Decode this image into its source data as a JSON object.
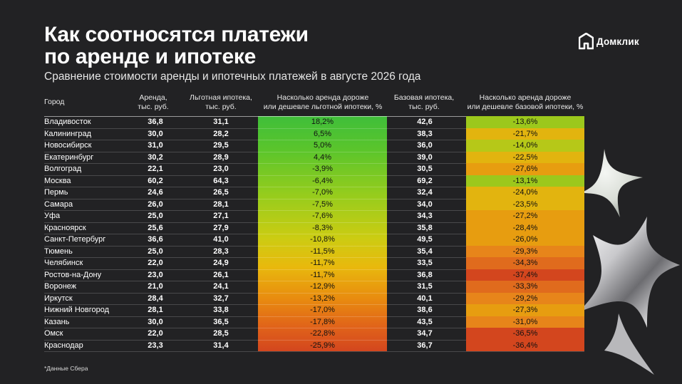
{
  "title_line1": "Как соотносятся платежи",
  "title_line2": "по аренде и ипотеке",
  "subtitle": "Сравнение стоимости аренды и ипотечных платежей в августе 2026 года",
  "logo_text": "Домклик",
  "footnote": "*Данные Сбера",
  "colors": {
    "background": "#222224",
    "diff_scale": [
      "#3fbe3a",
      "#94cc1d",
      "#cccc12",
      "#e8b90d",
      "#e88a0f",
      "#d3461e"
    ]
  },
  "chart_data": {
    "type": "table",
    "columns": [
      "Город",
      "Аренда,\nтыс. руб.",
      "Льготная ипотека,\nтыс. руб.",
      "Насколько аренда дороже\nили дешевле льготной ипотеки, %",
      "Базовая ипотека,\nтыс. руб.",
      "Насколько аренда дороже\nили дешевле базовой ипотеки, %"
    ],
    "rows": [
      {
        "city": "Владивосток",
        "rent": "36,8",
        "pref": "31,1",
        "pref_diff": "18,2%",
        "base": "42,6",
        "base_diff": "-13,6%"
      },
      {
        "city": "Калининград",
        "rent": "30,0",
        "pref": "28,2",
        "pref_diff": "6,5%",
        "base": "38,3",
        "base_diff": "-21,7%"
      },
      {
        "city": "Новосибирск",
        "rent": "31,0",
        "pref": "29,5",
        "pref_diff": "5,0%",
        "base": "36,0",
        "base_diff": "-14,0%"
      },
      {
        "city": "Екатеринбург",
        "rent": "30,2",
        "pref": "28,9",
        "pref_diff": "4,4%",
        "base": "39,0",
        "base_diff": "-22,5%"
      },
      {
        "city": "Волгоград",
        "rent": "22,1",
        "pref": "23,0",
        "pref_diff": "-3,9%",
        "base": "30,5",
        "base_diff": "-27,6%"
      },
      {
        "city": "Москва",
        "rent": "60,2",
        "pref": "64,3",
        "pref_diff": "-6,4%",
        "base": "69,2",
        "base_diff": "-13,1%"
      },
      {
        "city": "Пермь",
        "rent": "24,6",
        "pref": "26,5",
        "pref_diff": "-7,0%",
        "base": "32,4",
        "base_diff": "-24,0%"
      },
      {
        "city": "Самара",
        "rent": "26,0",
        "pref": "28,1",
        "pref_diff": "-7,5%",
        "base": "34,0",
        "base_diff": "-23,5%"
      },
      {
        "city": "Уфа",
        "rent": "25,0",
        "pref": "27,1",
        "pref_diff": "-7,6%",
        "base": "34,3",
        "base_diff": "-27,2%"
      },
      {
        "city": "Красноярск",
        "rent": "25,6",
        "pref": "27,9",
        "pref_diff": "-8,3%",
        "base": "35,8",
        "base_diff": "-28,4%"
      },
      {
        "city": "Санкт-Петербург",
        "rent": "36,6",
        "pref": "41,0",
        "pref_diff": "-10,8%",
        "base": "49,5",
        "base_diff": "-26,0%"
      },
      {
        "city": "Тюмень",
        "rent": "25,0",
        "pref": "28,3",
        "pref_diff": "-11,5%",
        "base": "35,4",
        "base_diff": "-29,3%"
      },
      {
        "city": "Челябинск",
        "rent": "22,0",
        "pref": "24,9",
        "pref_diff": "-11,7%",
        "base": "33,5",
        "base_diff": "-34,3%"
      },
      {
        "city": "Ростов-на-Дону",
        "rent": "23,0",
        "pref": "26,1",
        "pref_diff": "-11,7%",
        "base": "36,8",
        "base_diff": "-37,4%"
      },
      {
        "city": "Воронеж",
        "rent": "21,0",
        "pref": "24,1",
        "pref_diff": "-12,9%",
        "base": "31,5",
        "base_diff": "-33,3%"
      },
      {
        "city": "Иркутск",
        "rent": "28,4",
        "pref": "32,7",
        "pref_diff": "-13,2%",
        "base": "40,1",
        "base_diff": "-29,2%"
      },
      {
        "city": "Нижний Новгород",
        "rent": "28,1",
        "pref": "33,8",
        "pref_diff": "-17,0%",
        "base": "38,6",
        "base_diff": "-27,3%"
      },
      {
        "city": "Казань",
        "rent": "30,0",
        "pref": "36,5",
        "pref_diff": "-17,8%",
        "base": "43,5",
        "base_diff": "-31,0%"
      },
      {
        "city": "Омск",
        "rent": "22,0",
        "pref": "28,5",
        "pref_diff": "-22,8%",
        "base": "34,7",
        "base_diff": "-36,5%"
      },
      {
        "city": "Краснодар",
        "rent": "23,3",
        "pref": "31,4",
        "pref_diff": "-25,9%",
        "base": "36,7",
        "base_diff": "-36,4%"
      }
    ]
  }
}
